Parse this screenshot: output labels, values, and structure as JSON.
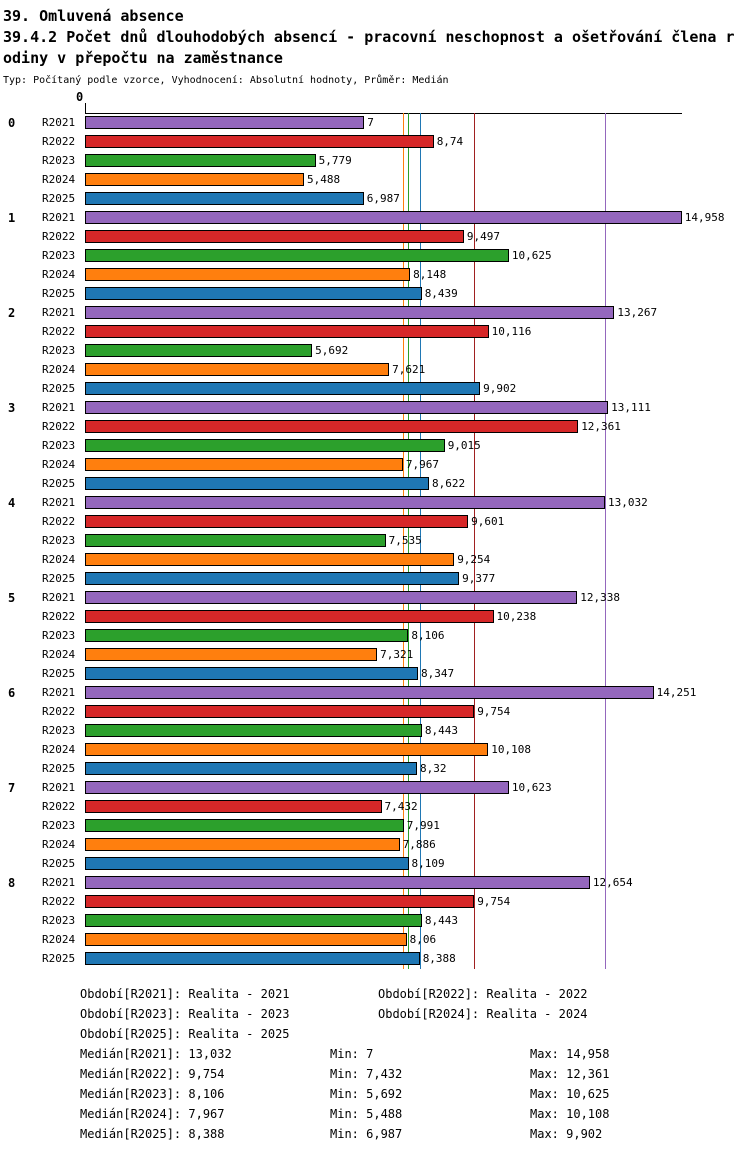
{
  "chart_data": {
    "type": "bar",
    "orientation": "horizontal",
    "title": "39. Omluvená absence",
    "subtitle_lines": [
      "39.4.2 Počet dnů dlouhodobých absencí - pracovní neschopnost a ošetřování člena r",
      "odiny v přepočtu na zaměstnance"
    ],
    "meta": "Typ: Počítaný podle vzorce, Vyhodnocení: Absolutní hodnoty, Průměr: Medián",
    "axis": {
      "origin_label": "0",
      "xmin": 0,
      "xmax": 14.958
    },
    "series": [
      "R2021",
      "R2022",
      "R2023",
      "R2024",
      "R2025"
    ],
    "series_colors": {
      "R2021": "#9467bd",
      "R2022": "#d62728",
      "R2023": "#2ca02c",
      "R2024": "#ff7f0e",
      "R2025": "#1f77b4"
    },
    "groups": [
      {
        "label": "0",
        "values": [
          7,
          8.74,
          5.779,
          5.488,
          6.987
        ],
        "value_labels": [
          "7",
          "8,74",
          "5,779",
          "5,488",
          "6,987"
        ]
      },
      {
        "label": "1",
        "values": [
          14.958,
          9.497,
          10.625,
          8.148,
          8.439
        ],
        "value_labels": [
          "14,958",
          "9,497",
          "10,625",
          "8,148",
          "8,439"
        ]
      },
      {
        "label": "2",
        "values": [
          13.267,
          10.116,
          5.692,
          7.621,
          9.902
        ],
        "value_labels": [
          "13,267",
          "10,116",
          "5,692",
          "7,621",
          "9,902"
        ]
      },
      {
        "label": "3",
        "values": [
          13.111,
          12.361,
          9.015,
          7.967,
          8.622
        ],
        "value_labels": [
          "13,111",
          "12,361",
          "9,015",
          "7,967",
          "8,622"
        ]
      },
      {
        "label": "4",
        "values": [
          13.032,
          9.601,
          7.535,
          9.254,
          9.377
        ],
        "value_labels": [
          "13,032",
          "9,601",
          "7,535",
          "9,254",
          "9,377"
        ]
      },
      {
        "label": "5",
        "values": [
          12.338,
          10.238,
          8.106,
          7.321,
          8.347
        ],
        "value_labels": [
          "12,338",
          "10,238",
          "8,106",
          "7,321",
          "8,347"
        ]
      },
      {
        "label": "6",
        "values": [
          14.251,
          9.754,
          8.443,
          10.108,
          8.32
        ],
        "value_labels": [
          "14,251",
          "9,754",
          "8,443",
          "10,108",
          "8,32"
        ]
      },
      {
        "label": "7",
        "values": [
          10.623,
          7.432,
          7.991,
          7.886,
          8.109
        ],
        "value_labels": [
          "10,623",
          "7,432",
          "7,991",
          "7,886",
          "8,109"
        ]
      },
      {
        "label": "8",
        "values": [
          12.654,
          9.754,
          8.443,
          8.06,
          8.388
        ],
        "value_labels": [
          "12,654",
          "9,754",
          "8,443",
          "8,06",
          "8,388"
        ]
      }
    ],
    "median_lines": [
      {
        "series": "R2021",
        "value": 13.032,
        "color": "#9467bd"
      },
      {
        "series": "R2022",
        "value": 9.754,
        "color": "#a02020"
      },
      {
        "series": "R2023",
        "value": 8.106,
        "color": "#2ca02c"
      },
      {
        "series": "R2024",
        "value": 7.967,
        "color": "#ff7f0e"
      },
      {
        "series": "R2025",
        "value": 8.388,
        "color": "#1f77b4"
      }
    ],
    "legend_rows": [
      [
        "Období[R2021]: Realita - 2021",
        "Období[R2022]: Realita - 2022"
      ],
      [
        "Období[R2023]: Realita - 2023",
        "Období[R2024]: Realita - 2024"
      ],
      [
        "Období[R2025]: Realita - 2025",
        ""
      ]
    ],
    "stat_rows": [
      [
        "Medián[R2021]: 13,032",
        "Min: 7",
        "Max: 14,958"
      ],
      [
        "Medián[R2022]: 9,754",
        "Min: 7,432",
        "Max: 12,361"
      ],
      [
        "Medián[R2023]: 8,106",
        "Min: 5,692",
        "Max: 10,625"
      ],
      [
        "Medián[R2024]: 7,967",
        "Min: 5,488",
        "Max: 10,108"
      ],
      [
        "Medián[R2025]: 8,388",
        "Min: 6,987",
        "Max: 9,902"
      ]
    ]
  }
}
